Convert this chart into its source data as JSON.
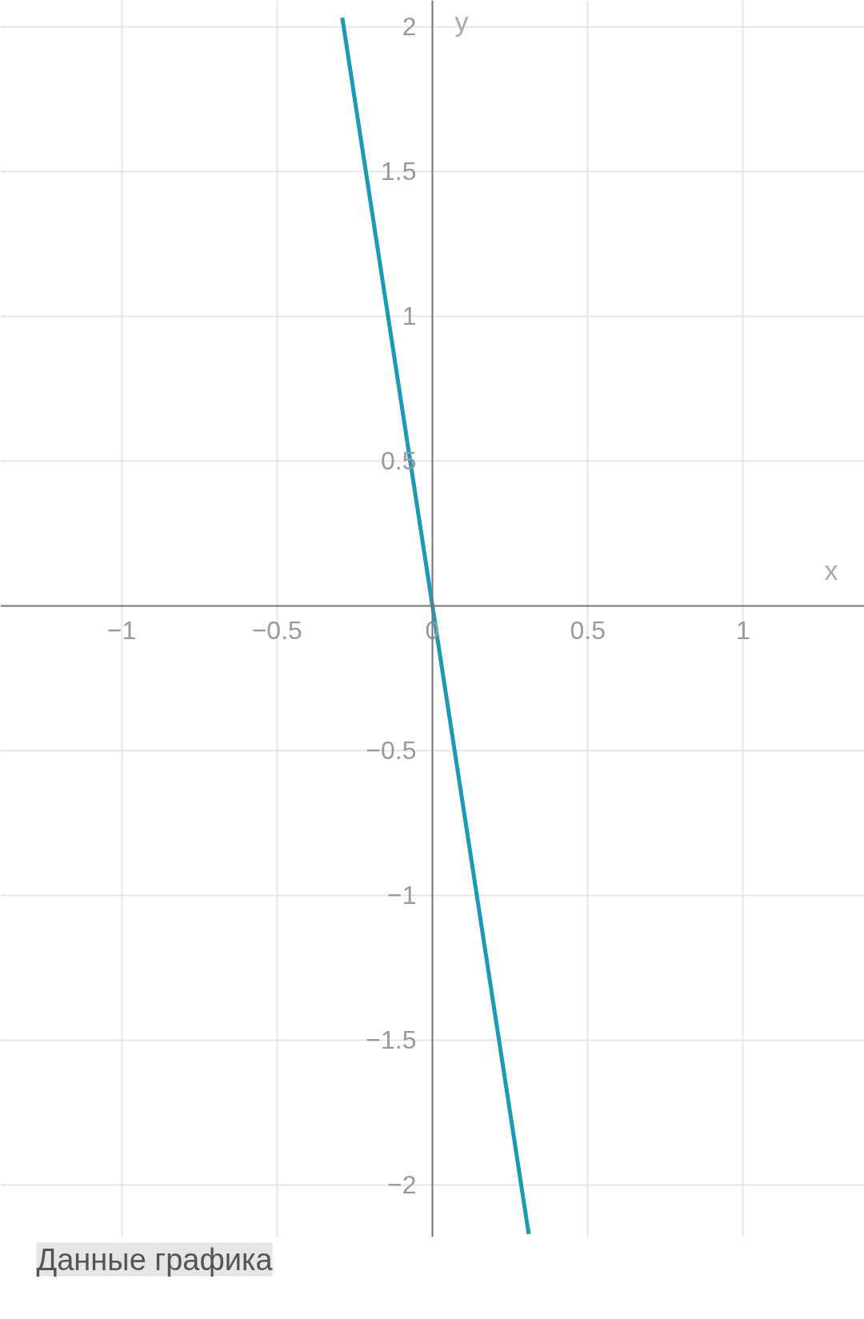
{
  "chart_data": {
    "type": "line",
    "xlabel": "x",
    "ylabel": "y",
    "x": [
      -0.29,
      0,
      0.31
    ],
    "series": [
      {
        "color": "#1a9bb5",
        "values": [
          2.03,
          0,
          -2.17
        ]
      }
    ],
    "xlim": [
      -1.39,
      1.39
    ],
    "ylim": [
      -2.18,
      2.09
    ],
    "xticks": [
      -1,
      -0.5,
      0,
      0.5,
      1
    ],
    "yticks": [
      -2,
      -1.5,
      -1,
      -0.5,
      0.5,
      1,
      1.5,
      2
    ],
    "grid": true,
    "marker": "none",
    "line_style": "solid",
    "annotations": [
      "Данные графика"
    ]
  }
}
